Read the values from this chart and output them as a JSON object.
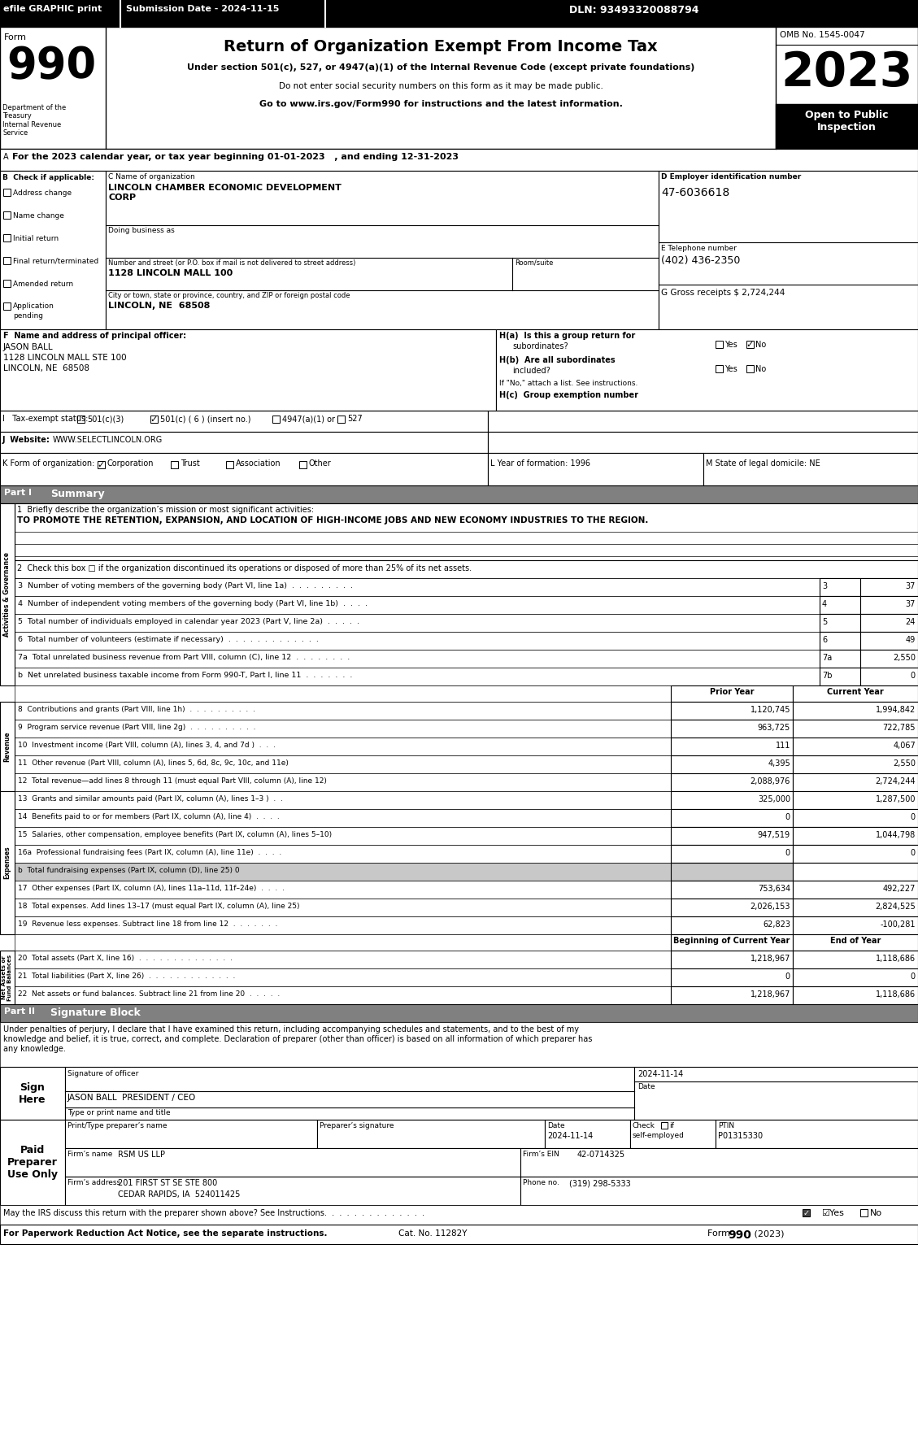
{
  "bg_color": "#ffffff",
  "efile_text": "efile GRAPHIC print",
  "submission_date": "Submission Date - 2024-11-15",
  "dln": "DLN: 93493320088794",
  "omb": "OMB No. 1545-0047",
  "year": "2023",
  "open_to_public": "Open to Public\nInspection",
  "dept_treasury": "Department of the\nTreasury\nInternal Revenue\nService",
  "tax_year_line": "For the 2023 calendar year, or tax year beginning 01-01-2023   , and ending 12-31-2023",
  "org_name_line1": "LINCOLN CHAMBER ECONOMIC DEVELOPMENT",
  "org_name_line2": "CORP",
  "doing_business_as": "Doing business as",
  "street_label": "Number and street (or P.O. box if mail is not delivered to street address)",
  "room_label": "Room/suite",
  "street_value": "1128 LINCOLN MALL 100",
  "city_label": "City or town, state or province, country, and ZIP or foreign postal code",
  "city_value": "LINCOLN, NE  68508",
  "ein_label": "D Employer identification number",
  "ein_value": "47-6036618",
  "phone_label": "E Telephone number",
  "phone_value": "(402) 436-2350",
  "gross_receipts": "G Gross receipts $ 2,724,244",
  "principal_officer_label": "F  Name and address of principal officer:",
  "principal_name": "JASON BALL",
  "principal_addr1": "1128 LINCOLN MALL STE 100",
  "principal_addr2": "LINCOLN, NE  68508",
  "ha_label": "H(a)  Is this a group return for",
  "ha_sub": "subordinates?",
  "hb_label": "H(b)  Are all subordinates",
  "hb_sub": "included?",
  "hb_note": "If \"No,\" attach a list. See instructions.",
  "hc_label": "H(c)  Group exemption number",
  "tax_exempt_label": "I   Tax-exempt status:",
  "tax_501c3": "501(c)(3)",
  "tax_501c6": "501(c) ( 6 ) (insert no.)",
  "tax_4947": "4947(a)(1) or",
  "tax_527": "527",
  "website_label": "J  Website:",
  "website_value": "WWW.SELECTLINCOLN.ORG",
  "form_org_label": "K Form of organization:",
  "form_org_corp": "Corporation",
  "form_org_trust": "Trust",
  "form_org_assoc": "Association",
  "form_org_other": "Other",
  "year_formation_label": "L Year of formation: 1996",
  "state_domicile_label": "M State of legal domicile: NE",
  "part1_label": "Part I",
  "part1_title": "Summary",
  "mission_label": "1  Briefly describe the organization’s mission or most significant activities:",
  "mission_text": "TO PROMOTE THE RETENTION, EXPANSION, AND LOCATION OF HIGH-INCOME JOBS AND NEW ECONOMY INDUSTRIES TO THE REGION.",
  "line2": "2  Check this box □ if the organization discontinued its operations or disposed of more than 25% of its net assets.",
  "line3_label": "3  Number of voting members of the governing body (Part VI, line 1a)  .  .  .  .  .  .  .  .  .",
  "line3_num": "3",
  "line3_val": "37",
  "line4_label": "4  Number of independent voting members of the governing body (Part VI, line 1b)  .  .  .  .",
  "line4_num": "4",
  "line4_val": "37",
  "line5_label": "5  Total number of individuals employed in calendar year 2023 (Part V, line 2a)  .  .  .  .  .",
  "line5_num": "5",
  "line5_val": "24",
  "line6_label": "6  Total number of volunteers (estimate if necessary)  .  .  .  .  .  .  .  .  .  .  .  .  .",
  "line6_num": "6",
  "line6_val": "49",
  "line7a_label": "7a  Total unrelated business revenue from Part VIII, column (C), line 12  .  .  .  .  .  .  .  .",
  "line7a_num": "7a",
  "line7a_val": "2,550",
  "line7b_label": "b  Net unrelated business taxable income from Form 990-T, Part I, line 11  .  .  .  .  .  .  .",
  "line7b_num": "7b",
  "line7b_val": "0",
  "revenue_header": "Prior Year",
  "revenue_header2": "Current Year",
  "line8_label": "8  Contributions and grants (Part VIII, line 1h)  .  .  .  .  .  .  .  .  .  .",
  "line8_prior": "1,120,745",
  "line8_curr": "1,994,842",
  "line9_label": "9  Program service revenue (Part VIII, line 2g)  .  .  .  .  .  .  .  .  .  .",
  "line9_prior": "963,725",
  "line9_curr": "722,785",
  "line10_label": "10  Investment income (Part VIII, column (A), lines 3, 4, and 7d )  .  .  .",
  "line10_prior": "111",
  "line10_curr": "4,067",
  "line11_label": "11  Other revenue (Part VIII, column (A), lines 5, 6d, 8c, 9c, 10c, and 11e)",
  "line11_prior": "4,395",
  "line11_curr": "2,550",
  "line12_label": "12  Total revenue—add lines 8 through 11 (must equal Part VIII, column (A), line 12)",
  "line12_prior": "2,088,976",
  "line12_curr": "2,724,244",
  "line13_label": "13  Grants and similar amounts paid (Part IX, column (A), lines 1–3 )  .  .",
  "line13_prior": "325,000",
  "line13_curr": "1,287,500",
  "line14_label": "14  Benefits paid to or for members (Part IX, column (A), line 4)  .  .  .  .",
  "line14_prior": "0",
  "line14_curr": "0",
  "line15_label": "15  Salaries, other compensation, employee benefits (Part IX, column (A), lines 5–10)",
  "line15_prior": "947,519",
  "line15_curr": "1,044,798",
  "line16a_label": "16a  Professional fundraising fees (Part IX, column (A), line 11e)  .  .  .  .",
  "line16a_prior": "0",
  "line16a_curr": "0",
  "line16b_label": "b  Total fundraising expenses (Part IX, column (D), line 25) 0",
  "line17_label": "17  Other expenses (Part IX, column (A), lines 11a–11d, 11f–24e)  .  .  .  .",
  "line17_prior": "753,634",
  "line17_curr": "492,227",
  "line18_label": "18  Total expenses. Add lines 13–17 (must equal Part IX, column (A), line 25)",
  "line18_prior": "2,026,153",
  "line18_curr": "2,824,525",
  "line19_label": "19  Revenue less expenses. Subtract line 18 from line 12  .  .  .  .  .  .  .",
  "line19_prior": "62,823",
  "line19_curr": "-100,281",
  "assets_header1": "Beginning of Current Year",
  "assets_header2": "End of Year",
  "line20_label": "20  Total assets (Part X, line 16)  .  .  .  .  .  .  .  .  .  .  .  .  .  .",
  "line20_begin": "1,218,967",
  "line20_end": "1,118,686",
  "line21_label": "21  Total liabilities (Part X, line 26)  .  .  .  .  .  .  .  .  .  .  .  .  .",
  "line21_begin": "0",
  "line21_end": "0",
  "line22_label": "22  Net assets or fund balances. Subtract line 21 from line 20  .  .  .  .  .",
  "line22_begin": "1,218,967",
  "line22_end": "1,118,686",
  "part2_label": "Part II",
  "part2_title": "Signature Block",
  "sig_text_line1": "Under penalties of perjury, I declare that I have examined this return, including accompanying schedules and statements, and to the best of my",
  "sig_text_line2": "knowledge and belief, it is true, correct, and complete. Declaration of preparer (other than officer) is based on all information of which preparer has",
  "sig_text_line3": "any knowledge.",
  "sign_here": "Sign\nHere",
  "sig_officer_label": "Signature of officer",
  "sig_date_label": "Date",
  "sig_name": "JASON BALL  PRESIDENT / CEO",
  "sig_type_label": "Type or print name and title",
  "paid_preparer": "Paid\nPreparer\nUse Only",
  "preparer_name_label": "Print/Type preparer’s name",
  "preparer_sig_label": "Preparer’s signature",
  "preparer_date_label": "Date",
  "preparer_check_label": "Check □ if\nself-employed",
  "preparer_ptin_label": "PTIN",
  "preparer_ptin": "P01315330",
  "preparer_date": "2024-11-14",
  "firm_name_label": "Firm’s name",
  "firm_name": "RSM US LLP",
  "firm_ein_label": "Firm’s EIN",
  "firm_ein": "42-0714325",
  "firm_addr_label": "Firm’s address",
  "firm_addr": "201 FIRST ST SE STE 800",
  "firm_city": "CEDAR RAPIDS, IA  524011425",
  "firm_phone_label": "Phone no.",
  "firm_phone": "(319) 298-5333",
  "discuss_label": "May the IRS discuss this return with the preparer shown above? See Instructions.  .  .  .  .  .  .  .  .  .  .  .  .  .",
  "discuss_yes": "☑Yes",
  "discuss_no": "□No",
  "paperwork_label": "For Paperwork Reduction Act Notice, see the separate instructions.",
  "cat_no": "Cat. No. 11282Y",
  "form_990_2023_label": "Form",
  "form_990_2023_num": "990",
  "form_990_2023_year": "(2023)",
  "b_check_applicable": "B  Check if applicable:",
  "address_change": "Address change",
  "name_change": "Name change",
  "initial_return": "Initial return",
  "final_return": "Final return/terminated",
  "amended_return": "Amended return",
  "app_pending_1": "Application",
  "app_pending_2": "pending",
  "sig_date_val": "2024-11-14",
  "c_label": "C Name of organization"
}
